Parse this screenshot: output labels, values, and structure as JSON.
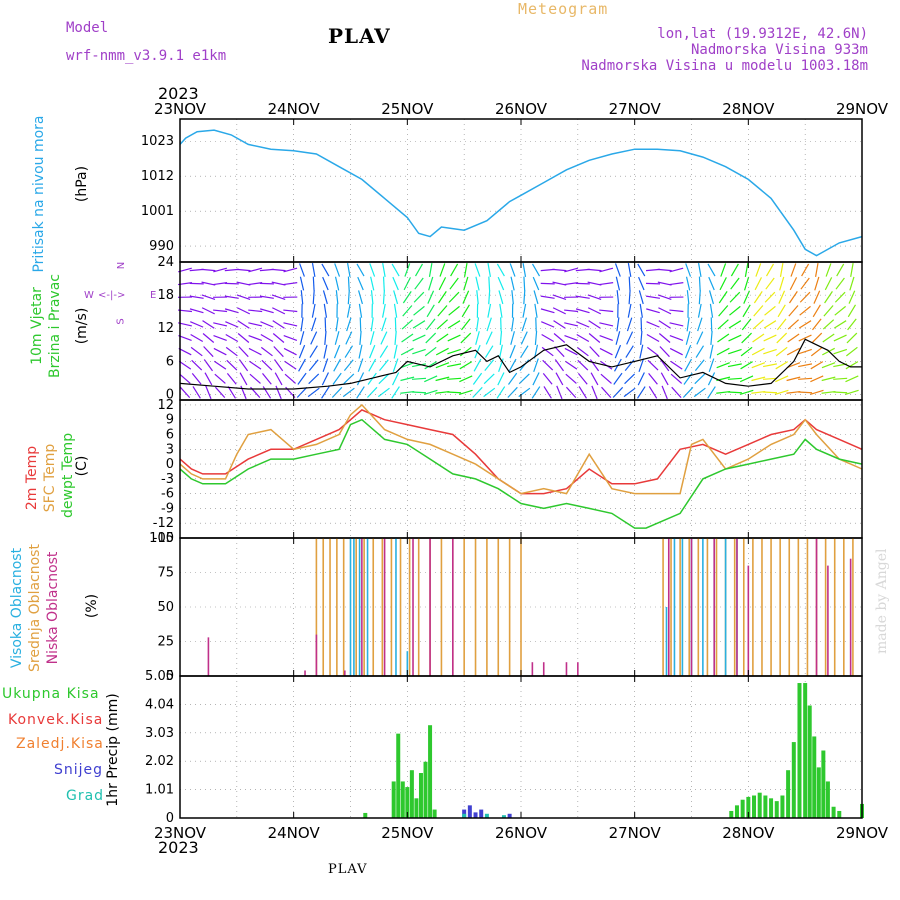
{
  "header": {
    "model_label": "Model",
    "model_name": "wrf-nmm_v3.9.1 e1km",
    "title": "PLAV",
    "meteogram_label": "Meteogram",
    "location": "lon,lat (19.9312E, 42.6N)",
    "elevation": "Nadmorska Visina 933m",
    "model_elevation": "Nadmorska Visina u modelu 1003.18m",
    "year": "2023"
  },
  "footer": {
    "station": "PLAV",
    "credit": "made by Angel"
  },
  "colors": {
    "pressure": "#2aa8e8",
    "temp2m": "#e83a3a",
    "sfc_temp": "#e0a040",
    "dewpoint": "#2ec82e",
    "high_cloud": "#2ab0e0",
    "mid_cloud": "#e0a040",
    "low_cloud": "#c0308a",
    "total_precip": "#2ec82e",
    "conv_precip": "#e83a3a",
    "frozen": "#f08030",
    "snow": "#4040d0",
    "hail": "#20c0b0",
    "axes": "#000000",
    "grid": "#888888"
  },
  "chart_data": [
    {
      "type": "line",
      "panel": "pressure",
      "label": "Pritisak na nivou mora",
      "ylabel": "(hPa)",
      "x_categories": [
        "23NOV",
        "24NOV",
        "25NOV",
        "26NOV",
        "27NOV",
        "28NOV",
        "29NOV"
      ],
      "ylim": [
        985,
        1030
      ],
      "yticks": [
        990,
        1001,
        1012,
        1023
      ],
      "grid": true,
      "series": [
        {
          "name": "Pritisak na nivou mora",
          "x": [
            0,
            0.05,
            0.15,
            0.3,
            0.45,
            0.6,
            0.8,
            1.0,
            1.2,
            1.4,
            1.6,
            1.8,
            2.0,
            2.1,
            2.2,
            2.3,
            2.4,
            2.5,
            2.7,
            2.9,
            3.0,
            3.2,
            3.4,
            3.6,
            3.8,
            4.0,
            4.2,
            4.4,
            4.6,
            4.8,
            5.0,
            5.2,
            5.4,
            5.5,
            5.6,
            5.8,
            6.0
          ],
          "values": [
            1022,
            1024,
            1026,
            1026.5,
            1025,
            1022,
            1020.5,
            1020,
            1019,
            1015,
            1011,
            1005,
            999,
            994,
            993,
            996,
            995.5,
            995,
            998,
            1004,
            1006,
            1010,
            1014,
            1017,
            1019,
            1020.5,
            1020.5,
            1020,
            1018,
            1015,
            1011,
            1005,
            995,
            989,
            987,
            991,
            993
          ]
        }
      ]
    },
    {
      "type": "line",
      "panel": "wind",
      "label": [
        "10m Vjetar",
        "Brzina i Pravac"
      ],
      "ylabel": "(m/s)",
      "compass": [
        "N",
        "E",
        "S",
        "W"
      ],
      "ylim": [
        -1,
        24
      ],
      "yticks": [
        0,
        6,
        12,
        18,
        24
      ],
      "grid": true,
      "series": [
        {
          "name": "10m Vjetar",
          "x": [
            0,
            0.3,
            0.6,
            1.0,
            1.3,
            1.5,
            1.7,
            1.9,
            2.0,
            2.2,
            2.4,
            2.6,
            2.7,
            2.8,
            2.9,
            3.0,
            3.2,
            3.4,
            3.6,
            3.8,
            4.0,
            4.2,
            4.4,
            4.6,
            4.8,
            5.0,
            5.2,
            5.4,
            5.5,
            5.6,
            5.7,
            5.8,
            5.9,
            6.0
          ],
          "values": [
            2,
            1.5,
            1,
            1,
            1.5,
            2,
            3,
            4,
            6,
            5,
            7,
            8,
            6,
            7,
            4,
            5,
            8,
            9,
            6,
            5,
            6,
            7,
            3,
            4,
            2,
            1.5,
            2,
            6,
            10,
            9,
            8,
            6,
            5,
            5
          ]
        }
      ]
    },
    {
      "type": "line",
      "panel": "temperature",
      "label": [
        "2m Temp",
        "SFC Temp",
        "dewpt Temp"
      ],
      "ylabel": "(C)",
      "ylim": [
        -15,
        13
      ],
      "yticks": [
        -15,
        -12,
        -9,
        -6,
        -3,
        0,
        3,
        6,
        9,
        12
      ],
      "grid": true,
      "series": [
        {
          "name": "2m Temp",
          "x": [
            0,
            0.1,
            0.2,
            0.4,
            0.6,
            0.8,
            1.0,
            1.2,
            1.4,
            1.6,
            1.8,
            2.0,
            2.2,
            2.4,
            2.6,
            2.8,
            3.0,
            3.2,
            3.4,
            3.6,
            3.8,
            4.0,
            4.2,
            4.4,
            4.6,
            4.8,
            5.0,
            5.2,
            5.4,
            5.5,
            5.6,
            5.8,
            6.0
          ],
          "values": [
            1,
            -1,
            -2,
            -2,
            1,
            3,
            3,
            5,
            7,
            11,
            9,
            8,
            7,
            6,
            2,
            -3,
            -6,
            -6,
            -5,
            -1,
            -4,
            -4,
            -3,
            3,
            4,
            2,
            4,
            6,
            7,
            9,
            7,
            5,
            3
          ]
        },
        {
          "name": "SFC Temp",
          "x": [
            0,
            0.1,
            0.2,
            0.4,
            0.5,
            0.6,
            0.8,
            1.0,
            1.2,
            1.4,
            1.5,
            1.6,
            1.8,
            2.0,
            2.2,
            2.4,
            2.6,
            2.8,
            3.0,
            3.2,
            3.4,
            3.6,
            3.8,
            4.0,
            4.2,
            4.4,
            4.5,
            4.6,
            4.8,
            5.0,
            5.2,
            5.4,
            5.5,
            5.6,
            5.8,
            6.0
          ],
          "values": [
            0,
            -2,
            -3,
            -3,
            2,
            6,
            7,
            3,
            4,
            6,
            10,
            12,
            7,
            5,
            4,
            2,
            0,
            -3,
            -6,
            -5,
            -6,
            2,
            -5,
            -6,
            -6,
            -6,
            4,
            5,
            -1,
            1,
            4,
            6,
            9,
            6,
            1,
            -1
          ]
        },
        {
          "name": "dewpt Temp",
          "x": [
            0,
            0.1,
            0.2,
            0.4,
            0.6,
            0.8,
            1.0,
            1.2,
            1.4,
            1.5,
            1.6,
            1.8,
            2.0,
            2.2,
            2.4,
            2.6,
            2.8,
            3.0,
            3.2,
            3.4,
            3.6,
            3.8,
            4.0,
            4.1,
            4.2,
            4.4,
            4.6,
            4.8,
            5.0,
            5.2,
            5.4,
            5.5,
            5.6,
            5.8,
            6.0
          ],
          "values": [
            -1,
            -3,
            -4,
            -4,
            -1,
            1,
            1,
            2,
            3,
            8,
            9,
            5,
            4,
            1,
            -2,
            -3,
            -5,
            -8,
            -9,
            -8,
            -9,
            -10,
            -13,
            -13,
            -12,
            -10,
            -3,
            -1,
            0,
            1,
            2,
            5,
            3,
            1,
            0
          ]
        }
      ]
    },
    {
      "type": "bar",
      "panel": "clouds",
      "label": [
        "Visoka Oblacnost",
        "Srednja Oblacnost",
        "Niska Oblacnost"
      ],
      "ylabel": "(%)",
      "ylim": [
        0,
        100
      ],
      "yticks": [
        0,
        25,
        50,
        75,
        100
      ],
      "grid": true,
      "series": [
        {
          "name": "Srednja Oblacnost",
          "x": [
            1.2,
            1.26,
            1.32,
            1.38,
            1.44,
            1.55,
            1.62,
            1.7,
            1.78,
            1.86,
            1.94,
            2.02,
            2.1,
            2.2,
            2.3,
            2.4,
            2.5,
            2.6,
            2.7,
            2.8,
            2.9,
            3.0,
            4.25,
            4.32,
            4.4,
            4.48,
            4.56,
            4.64,
            4.72,
            4.8,
            4.88,
            4.96,
            5.04,
            5.12,
            5.2,
            5.28,
            5.36,
            5.44,
            5.52,
            5.6,
            5.68,
            5.76,
            5.84,
            5.92
          ],
          "values": [
            100,
            100,
            100,
            100,
            100,
            100,
            100,
            100,
            100,
            100,
            100,
            100,
            100,
            100,
            100,
            100,
            100,
            100,
            100,
            100,
            100,
            100,
            100,
            100,
            100,
            100,
            100,
            100,
            100,
            100,
            100,
            100,
            100,
            100,
            100,
            100,
            100,
            100,
            100,
            100,
            100,
            100,
            100,
            100
          ]
        },
        {
          "name": "Visoka Oblacnost",
          "x": [
            1.5,
            1.53,
            1.58,
            1.65,
            1.9,
            2.0,
            4.28,
            4.35,
            4.42,
            4.5,
            4.6,
            4.7,
            4.8,
            4.9
          ],
          "values": [
            100,
            100,
            100,
            100,
            100,
            18,
            50,
            100,
            100,
            100,
            100,
            100,
            100,
            100
          ]
        },
        {
          "name": "Niska Oblacnost",
          "x": [
            0.25,
            1.1,
            1.2,
            1.45,
            1.6,
            1.8,
            2.05,
            2.2,
            2.4,
            3.1,
            3.2,
            3.4,
            3.5,
            4.3,
            4.5,
            4.7,
            4.9,
            5.0,
            5.6,
            5.7,
            5.9
          ],
          "values": [
            28,
            4,
            30,
            4,
            100,
            100,
            100,
            100,
            100,
            10,
            10,
            10,
            10,
            100,
            100,
            100,
            100,
            80,
            100,
            80,
            85
          ]
        }
      ]
    },
    {
      "type": "bar",
      "panel": "precipitation",
      "label": [
        "Ukupna Kisa",
        "Konvek.Kisa",
        "Zaledj.Kisa",
        "Snijeg",
        "Grad"
      ],
      "ylabel": "1hr Precip (mm)",
      "x_categories": [
        "23NOV",
        "24NOV",
        "25NOV",
        "26NOV",
        "27NOV",
        "28NOV",
        "29NOV"
      ],
      "ylim": [
        0,
        5.05
      ],
      "yticks": [
        0,
        1.01,
        2.02,
        3.03,
        4.04,
        5.05
      ],
      "grid": true,
      "series": [
        {
          "name": "Ukupna Kisa",
          "x": [
            1.63,
            1.88,
            1.92,
            1.96,
            2.0,
            2.04,
            2.08,
            2.12,
            2.16,
            2.2,
            2.24,
            4.85,
            4.9,
            4.95,
            5.0,
            5.05,
            5.1,
            5.15,
            5.2,
            5.25,
            5.3,
            5.35,
            5.4,
            5.45,
            5.5,
            5.54,
            5.58,
            5.62,
            5.66,
            5.7,
            5.75,
            5.8,
            6.0
          ],
          "values": [
            0.18,
            1.3,
            3.0,
            1.3,
            1.1,
            1.7,
            0.7,
            1.6,
            2.0,
            3.3,
            0.3,
            0.25,
            0.45,
            0.65,
            0.75,
            0.8,
            0.9,
            0.8,
            0.7,
            0.6,
            0.8,
            1.7,
            2.7,
            4.8,
            4.8,
            4.0,
            2.9,
            1.8,
            2.4,
            1.3,
            0.4,
            0.25,
            0.5
          ]
        },
        {
          "name": "Snijeg",
          "x": [
            2.5,
            2.55,
            2.6,
            2.65,
            2.9
          ],
          "values": [
            0.3,
            0.45,
            0.2,
            0.3,
            0.15
          ]
        },
        {
          "name": "Grad",
          "x": [
            2.5,
            2.7,
            2.85
          ],
          "values": [
            0.15,
            0.15,
            0.1
          ]
        }
      ]
    }
  ]
}
